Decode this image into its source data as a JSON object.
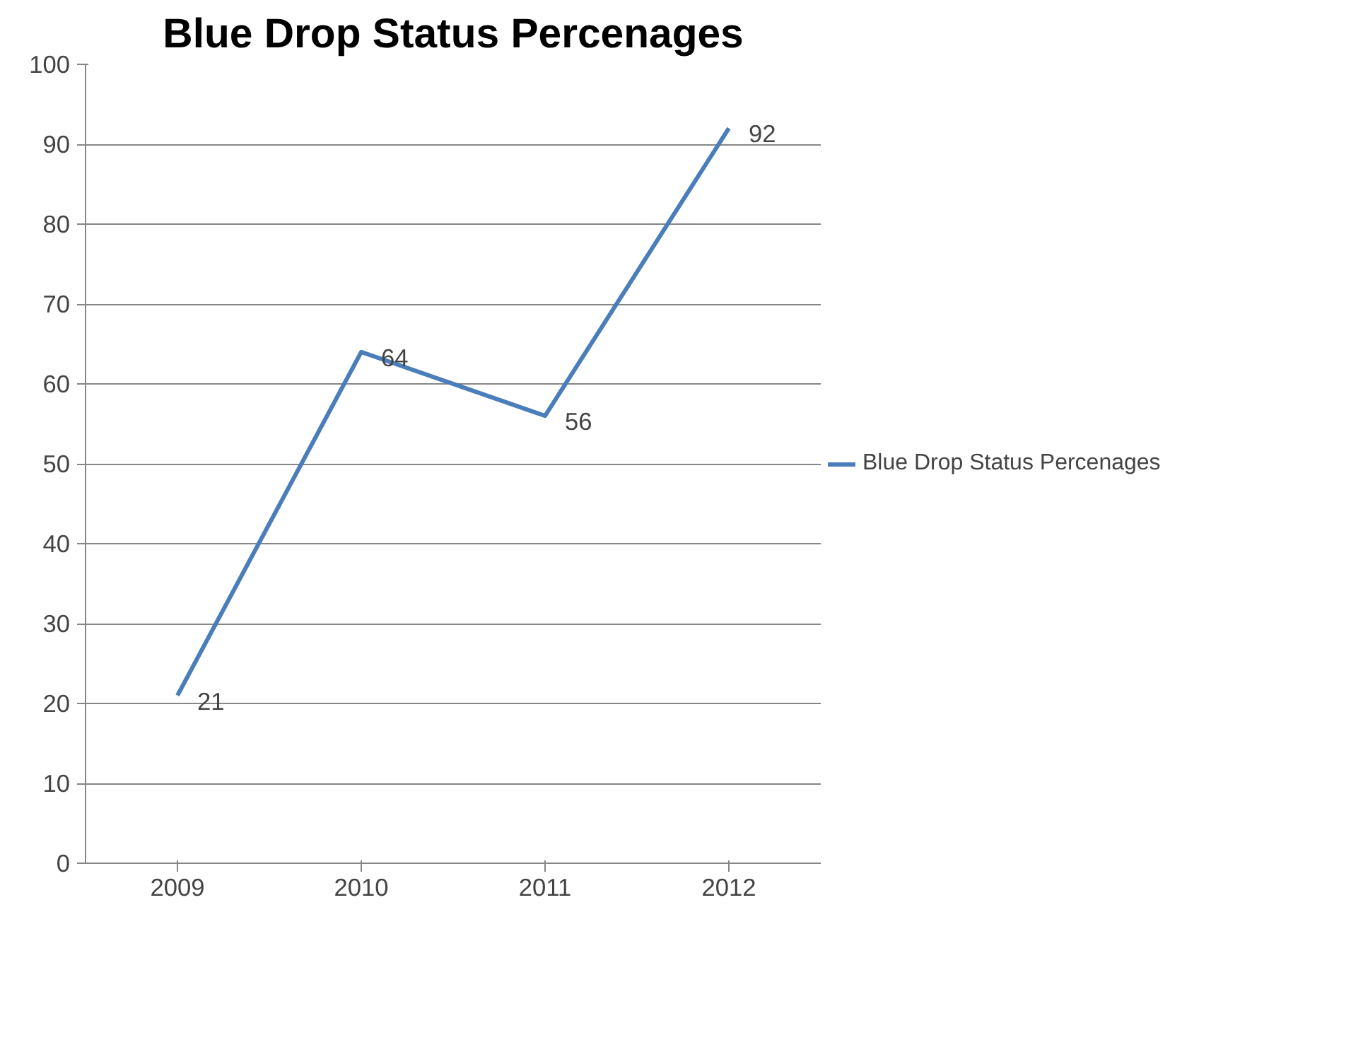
{
  "chart_data": {
    "type": "line",
    "title": "Blue Drop Status Percenages",
    "categories": [
      "2009",
      "2010",
      "2011",
      "2012"
    ],
    "series": [
      {
        "name": "Blue Drop Status Percenages",
        "color": "#4a7ebb",
        "values": [
          21,
          64,
          56,
          92
        ]
      }
    ],
    "ylim": [
      0,
      100
    ],
    "yticks": [
      0,
      10,
      20,
      30,
      40,
      50,
      60,
      70,
      80,
      90,
      100
    ],
    "grid": "y",
    "legend": "right",
    "data_labels": true,
    "marker": "none",
    "line_style": "solid"
  }
}
